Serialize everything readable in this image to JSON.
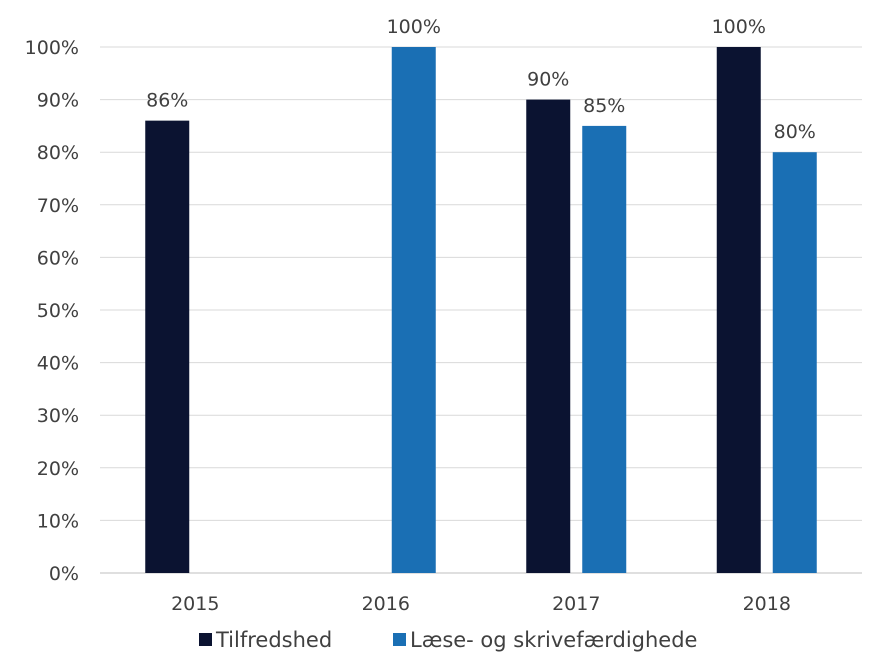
{
  "chart_data": {
    "type": "bar",
    "categories": [
      "2015",
      "2016",
      "2017",
      "2018"
    ],
    "series": [
      {
        "name": "Tilfredshed",
        "color": "#0b1331",
        "values": [
          86,
          null,
          90,
          100
        ],
        "labels": [
          "86%",
          "",
          "90%",
          "100%"
        ]
      },
      {
        "name": "Læse- og skrivefærdighede",
        "color": "#1a6fb4",
        "values": [
          null,
          100,
          85,
          80
        ],
        "labels": [
          "",
          "100%",
          "85%",
          "80%"
        ]
      }
    ],
    "ylim": [
      0,
      100
    ],
    "yticks": [
      0,
      10,
      20,
      30,
      40,
      50,
      60,
      70,
      80,
      90,
      100
    ],
    "ytick_labels": [
      "0%",
      "10%",
      "20%",
      "30%",
      "40%",
      "50%",
      "60%",
      "70%",
      "80%",
      "90%",
      "100%"
    ],
    "title": "",
    "xlabel": "",
    "ylabel": "",
    "grid": true,
    "legend_position": "bottom"
  }
}
